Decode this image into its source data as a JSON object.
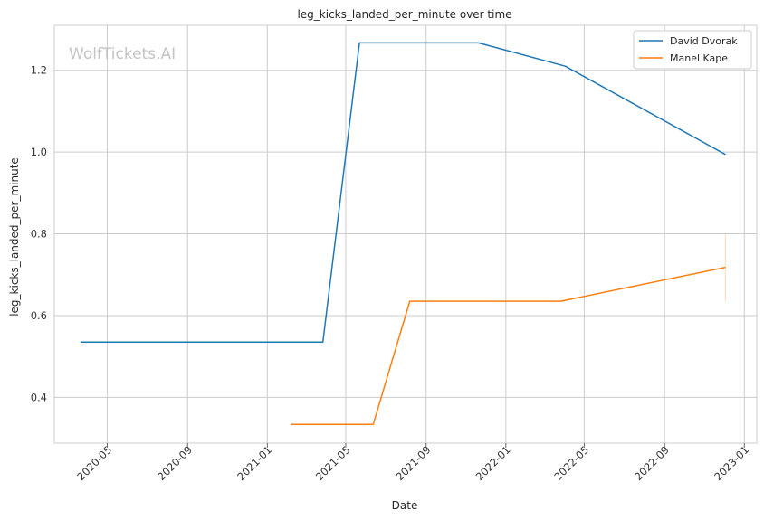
{
  "watermark": "WolfTickets.AI",
  "chart_data": {
    "type": "line",
    "title": "leg_kicks_landed_per_minute over time",
    "xlabel": "Date",
    "ylabel": "leg_kicks_landed_per_minute",
    "x_ticks": [
      "2020-05",
      "2020-09",
      "2021-01",
      "2021-05",
      "2021-09",
      "2022-01",
      "2022-05",
      "2022-09",
      "2023-01"
    ],
    "y_ticks": [
      "0.4",
      "0.6",
      "0.8",
      "1.0",
      "1.2"
    ],
    "xlim": [
      "2020-02-10",
      "2023-01-20"
    ],
    "ylim": [
      0.288,
      1.31
    ],
    "grid": true,
    "legend_position": "top-right",
    "series": [
      {
        "name": "David Dvorak",
        "color": "#1f77b4",
        "points": [
          {
            "x": "2020-03-21",
            "y": 0.535
          },
          {
            "x": "2021-03-27",
            "y": 0.535
          },
          {
            "x": "2021-05-22",
            "y": 1.267
          },
          {
            "x": "2021-11-20",
            "y": 1.267
          },
          {
            "x": "2022-04-02",
            "y": 1.21
          },
          {
            "x": "2022-12-03",
            "y": 0.994
          }
        ]
      },
      {
        "name": "Manel Kape",
        "color": "#ff7f0e",
        "points": [
          {
            "x": "2021-02-06",
            "y": 0.334
          },
          {
            "x": "2021-06-12",
            "y": 0.334
          },
          {
            "x": "2021-08-07",
            "y": 0.635
          },
          {
            "x": "2022-03-26",
            "y": 0.635
          },
          {
            "x": "2022-12-03",
            "y": 0.718
          }
        ],
        "error_band": {
          "x": "2022-12-03",
          "low": 0.635,
          "high": 0.8
        }
      }
    ]
  }
}
